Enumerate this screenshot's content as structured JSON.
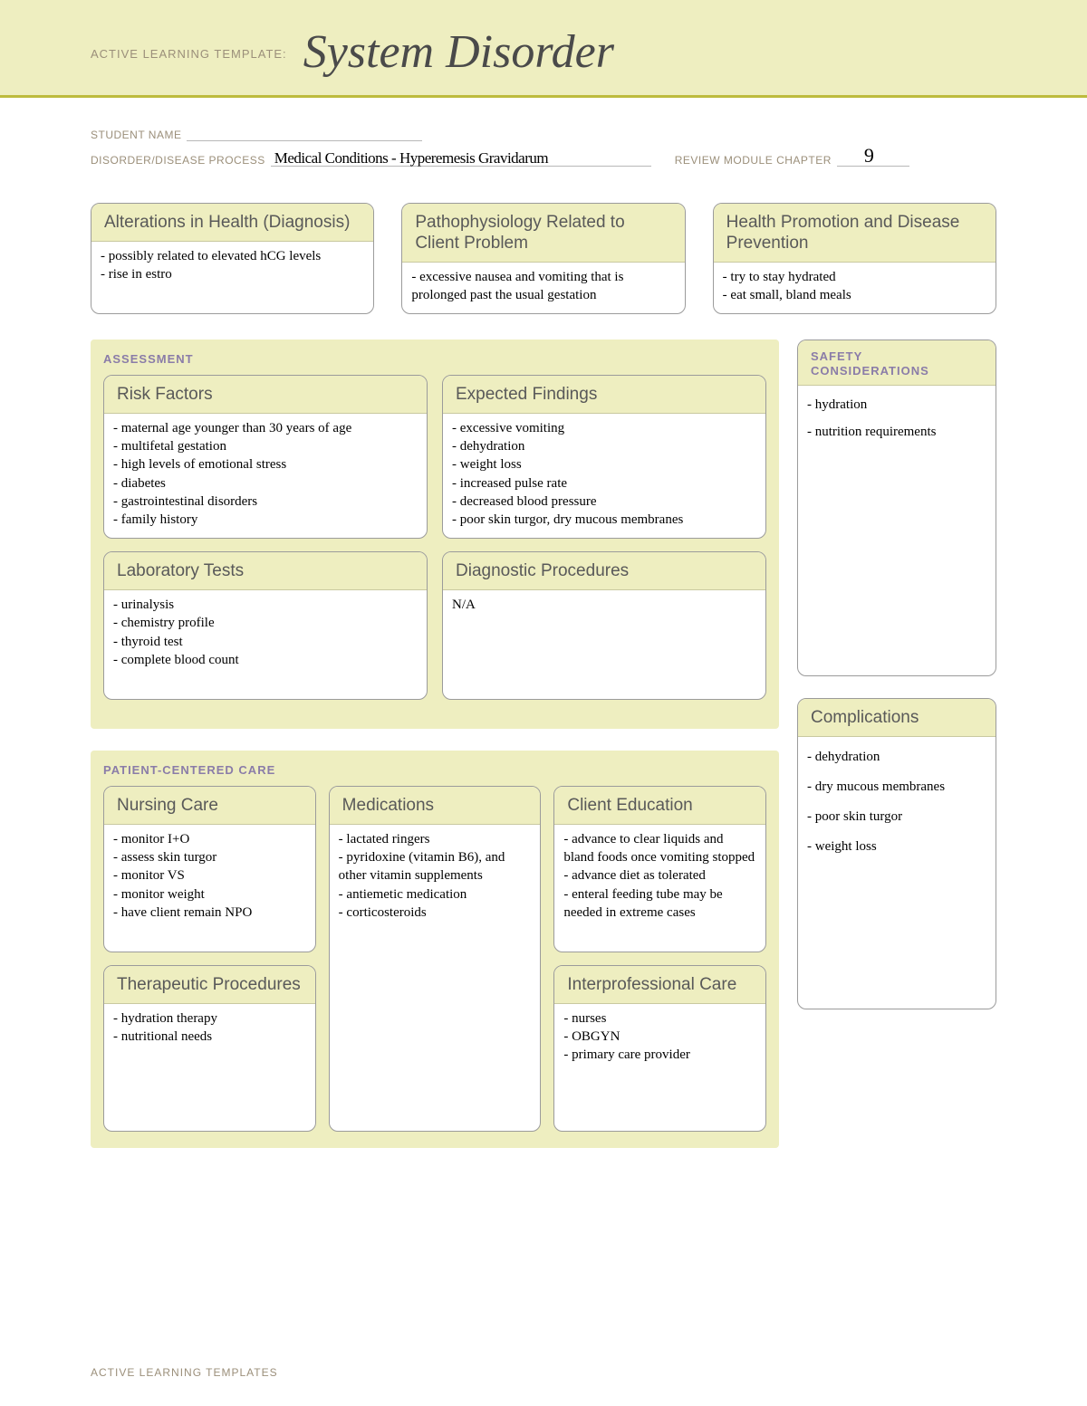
{
  "header": {
    "prefix": "ACTIVE LEARNING TEMPLATE:",
    "title": "System Disorder"
  },
  "meta": {
    "student_name_label": "STUDENT NAME",
    "student_name_value": "",
    "disorder_label": "DISORDER/DISEASE PROCESS",
    "disorder_value": "Medical Conditions - Hyperemesis Gravidarum",
    "chapter_label": "REVIEW MODULE CHAPTER",
    "chapter_value": "9"
  },
  "top": {
    "alterations": {
      "title": "Alterations in Health (Diagnosis)",
      "lines": [
        "possibly related to elevated hCG levels",
        "rise in estro"
      ]
    },
    "patho": {
      "title": "Pathophysiology Related to Client Problem",
      "lines": [
        "excessive nausea and vomiting that is prolonged past the usual gestation"
      ]
    },
    "promo": {
      "title": "Health Promotion and Disease Prevention",
      "lines": [
        "try to stay hydrated",
        "eat small, bland meals"
      ]
    }
  },
  "assessment_label": "ASSESSMENT",
  "safety_label": "SAFETY CONSIDERATIONS",
  "safety_lines": [
    "hydration",
    "nutrition requirements"
  ],
  "risk": {
    "title": "Risk Factors",
    "lines": [
      "maternal age younger than 30 years of age",
      "multifetal gestation",
      "high levels of emotional stress",
      "diabetes",
      "gastrointestinal disorders",
      "family history"
    ]
  },
  "expected": {
    "title": "Expected Findings",
    "lines": [
      "excessive vomiting",
      "dehydration",
      "weight loss",
      "increased pulse rate",
      "decreased blood pressure",
      "poor skin turgor, dry mucous membranes"
    ]
  },
  "labs": {
    "title": "Laboratory Tests",
    "lines": [
      "urinalysis",
      "chemistry profile",
      "thyroid test",
      "complete blood count"
    ]
  },
  "diag": {
    "title": "Diagnostic Procedures",
    "lines": [
      "N/A"
    ]
  },
  "pcc_label": "PATIENT-CENTERED CARE",
  "nursing": {
    "title": "Nursing Care",
    "lines": [
      "monitor I+O",
      "assess skin turgor",
      "monitor VS",
      "monitor weight",
      "have client remain NPO"
    ]
  },
  "meds": {
    "title": "Medications",
    "lines": [
      "lactated ringers",
      "pyridoxine (vitamin B6), and other vitamin supplements",
      "antiemetic medication",
      "corticosteroids"
    ]
  },
  "edu": {
    "title": "Client Education",
    "lines": [
      "advance to clear liquids and bland foods once vomiting stopped",
      "advance diet as tolerated",
      "enteral feeding tube may be needed in extreme cases"
    ]
  },
  "ther": {
    "title": "Therapeutic Procedures",
    "lines": [
      "hydration therapy",
      "nutritional needs"
    ]
  },
  "inter": {
    "title": "Interprofessional Care",
    "lines": [
      "nurses",
      "OBGYN",
      "primary care provider"
    ]
  },
  "comp": {
    "title": "Complications",
    "lines": [
      "dehydration",
      "dry mucous membranes",
      "poor skin turgor",
      "weight loss"
    ]
  },
  "footer": "ACTIVE LEARNING TEMPLATES",
  "colors": {
    "cream": "#eeeec0",
    "rule": "#bdbb3d",
    "label_purple": "#8a7ca8",
    "card_border": "#9b9b9b",
    "section_grey": "#e8e8e8"
  }
}
